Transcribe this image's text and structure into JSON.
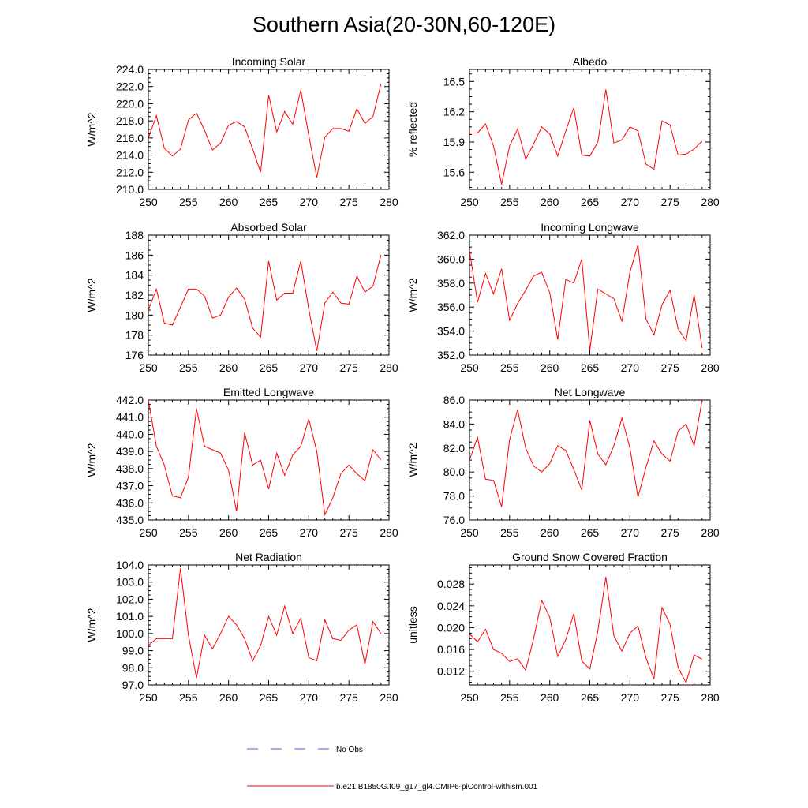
{
  "title": "Southern Asia(20-30N,60-120E)",
  "legend": {
    "no_obs_label": "No Obs",
    "model_label": "b.e21.B1850G.f09_g17_gl4.CMIP6-piControl-withism.001",
    "no_obs_color": "#4a5fcf",
    "model_color": "#ff0000"
  },
  "colors": {
    "line": "#ff0000",
    "axis": "#000000"
  },
  "chart_data": [
    {
      "type": "line",
      "title": "Incoming Solar",
      "ylabel": "W/m^2",
      "xlim": [
        250,
        280
      ],
      "ylim": [
        210,
        224
      ],
      "xticks": [
        250,
        255,
        260,
        265,
        270,
        275,
        280
      ],
      "yticks": [
        "210.0",
        "212.0",
        "214.0",
        "216.0",
        "218.0",
        "220.0",
        "222.0",
        "224.0"
      ],
      "x": [
        250,
        251,
        252,
        253,
        254,
        255,
        256,
        257,
        258,
        259,
        260,
        261,
        262,
        263,
        264,
        265,
        266,
        267,
        268,
        269,
        270,
        271,
        272,
        273,
        274,
        275,
        276,
        277,
        278,
        279
      ],
      "series": [
        {
          "values": [
            216.0,
            218.6,
            214.8,
            213.9,
            214.7,
            218.1,
            218.9,
            216.9,
            214.6,
            215.4,
            217.5,
            217.9,
            217.3,
            214.7,
            212.0,
            221.0,
            216.7,
            219.1,
            217.6,
            221.6,
            216.3,
            211.4,
            216.1,
            217.1,
            217.1,
            216.8,
            219.4,
            217.7,
            218.5,
            222.3
          ]
        }
      ]
    },
    {
      "type": "line",
      "title": "Albedo",
      "ylabel": "% reflected",
      "xlim": [
        250,
        280
      ],
      "ylim": [
        15.43,
        16.62
      ],
      "xticks": [
        250,
        255,
        260,
        265,
        270,
        275,
        280
      ],
      "yticks": [
        "15.6",
        "15.9",
        "16.2",
        "16.5"
      ],
      "x": [
        250,
        251,
        252,
        253,
        254,
        255,
        256,
        257,
        258,
        259,
        260,
        261,
        262,
        263,
        264,
        265,
        266,
        267,
        268,
        269,
        270,
        271,
        272,
        273,
        274,
        275,
        276,
        277,
        278,
        279
      ],
      "series": [
        {
          "values": [
            15.99,
            15.99,
            16.08,
            15.86,
            15.48,
            15.86,
            16.03,
            15.73,
            15.88,
            16.05,
            15.98,
            15.76,
            16.01,
            16.24,
            15.77,
            15.76,
            15.9,
            16.42,
            15.89,
            15.92,
            16.05,
            16.01,
            15.68,
            15.63,
            16.11,
            16.07,
            15.77,
            15.78,
            15.83,
            15.91
          ]
        }
      ]
    },
    {
      "type": "line",
      "title": "Absorbed Solar",
      "ylabel": "W/m^2",
      "xlim": [
        250,
        280
      ],
      "ylim": [
        176,
        188
      ],
      "xticks": [
        250,
        255,
        260,
        265,
        270,
        275,
        280
      ],
      "yticks": [
        "176",
        "178",
        "180",
        "182",
        "184",
        "186",
        "188"
      ],
      "x": [
        250,
        251,
        252,
        253,
        254,
        255,
        256,
        257,
        258,
        259,
        260,
        261,
        262,
        263,
        264,
        265,
        266,
        267,
        268,
        269,
        270,
        271,
        272,
        273,
        274,
        275,
        276,
        277,
        278,
        279
      ],
      "series": [
        {
          "values": [
            180.5,
            182.6,
            179.2,
            179.0,
            180.8,
            182.6,
            182.6,
            181.9,
            179.7,
            180.0,
            181.8,
            182.7,
            181.6,
            178.7,
            177.8,
            185.4,
            181.5,
            182.2,
            182.2,
            185.4,
            180.6,
            176.4,
            181.2,
            182.3,
            181.2,
            181.1,
            183.9,
            182.3,
            182.9,
            186.0
          ]
        }
      ]
    },
    {
      "type": "line",
      "title": "Incoming Longwave",
      "ylabel": "W/m^2",
      "xlim": [
        250,
        280
      ],
      "ylim": [
        352,
        362
      ],
      "xticks": [
        250,
        255,
        260,
        265,
        270,
        275,
        280
      ],
      "yticks": [
        "352.0",
        "354.0",
        "356.0",
        "358.0",
        "360.0",
        "362.0"
      ],
      "x": [
        250,
        251,
        252,
        253,
        254,
        255,
        256,
        257,
        258,
        259,
        260,
        261,
        262,
        263,
        264,
        265,
        266,
        267,
        268,
        269,
        270,
        271,
        272,
        273,
        274,
        275,
        276,
        277,
        278,
        279
      ],
      "series": [
        {
          "values": [
            360.7,
            356.4,
            358.8,
            357.1,
            359.2,
            354.9,
            356.3,
            357.4,
            358.6,
            358.9,
            357.2,
            353.3,
            358.3,
            358.0,
            360.0,
            352.4,
            357.5,
            357.1,
            356.7,
            354.8,
            358.9,
            361.2,
            355.0,
            353.7,
            356.2,
            357.4,
            354.2,
            353.2,
            357.0,
            352.6
          ]
        }
      ]
    },
    {
      "type": "line",
      "title": "Emitted Longwave",
      "ylabel": "W/m^2",
      "xlim": [
        250,
        280
      ],
      "ylim": [
        435,
        442
      ],
      "xticks": [
        250,
        255,
        260,
        265,
        270,
        275,
        280
      ],
      "yticks": [
        "435.0",
        "436.0",
        "437.0",
        "438.0",
        "439.0",
        "440.0",
        "441.0",
        "442.0"
      ],
      "x": [
        250,
        251,
        252,
        253,
        254,
        255,
        256,
        257,
        258,
        259,
        260,
        261,
        262,
        263,
        264,
        265,
        266,
        267,
        268,
        269,
        270,
        271,
        272,
        273,
        274,
        275,
        276,
        277,
        278,
        279
      ],
      "series": [
        {
          "values": [
            442.0,
            439.3,
            438.2,
            436.4,
            436.3,
            437.5,
            441.5,
            439.3,
            439.1,
            438.9,
            437.9,
            435.5,
            440.1,
            438.2,
            438.5,
            436.8,
            438.9,
            437.6,
            438.8,
            439.3,
            440.9,
            439.0,
            435.3,
            436.3,
            437.7,
            438.2,
            437.7,
            437.3,
            439.1,
            438.5
          ]
        }
      ]
    },
    {
      "type": "line",
      "title": "Net Longwave",
      "ylabel": "W/m^2",
      "xlim": [
        250,
        280
      ],
      "ylim": [
        76,
        86
      ],
      "xticks": [
        250,
        255,
        260,
        265,
        270,
        275,
        280
      ],
      "yticks": [
        "76.0",
        "78.0",
        "80.0",
        "82.0",
        "84.0",
        "86.0"
      ],
      "x": [
        250,
        251,
        252,
        253,
        254,
        255,
        256,
        257,
        258,
        259,
        260,
        261,
        262,
        263,
        264,
        265,
        266,
        267,
        268,
        269,
        270,
        271,
        272,
        273,
        274,
        275,
        276,
        277,
        278,
        279
      ],
      "series": [
        {
          "values": [
            81.0,
            82.9,
            79.4,
            79.3,
            77.1,
            82.7,
            85.2,
            82.0,
            80.5,
            80.0,
            80.7,
            82.2,
            81.8,
            80.2,
            78.5,
            84.3,
            81.5,
            80.6,
            82.2,
            84.5,
            82.0,
            77.9,
            80.4,
            82.6,
            81.5,
            80.9,
            83.4,
            84.0,
            82.2,
            86.0
          ]
        }
      ]
    },
    {
      "type": "line",
      "title": "Net Radiation",
      "ylabel": "W/m^2",
      "xlim": [
        250,
        280
      ],
      "ylim": [
        97,
        104
      ],
      "xticks": [
        250,
        255,
        260,
        265,
        270,
        275,
        280
      ],
      "yticks": [
        "97.0",
        "98.0",
        "99.0",
        "100.0",
        "101.0",
        "102.0",
        "103.0",
        "104.0"
      ],
      "x": [
        250,
        251,
        252,
        253,
        254,
        255,
        256,
        257,
        258,
        259,
        260,
        261,
        262,
        263,
        264,
        265,
        266,
        267,
        268,
        269,
        270,
        271,
        272,
        273,
        274,
        275,
        276,
        277,
        278,
        279
      ],
      "series": [
        {
          "values": [
            99.3,
            99.7,
            99.7,
            99.7,
            103.8,
            99.9,
            97.4,
            99.9,
            99.1,
            100.0,
            101.0,
            100.5,
            99.7,
            98.4,
            99.3,
            101.0,
            99.9,
            101.6,
            100.0,
            100.9,
            98.6,
            98.4,
            100.8,
            99.7,
            99.6,
            100.2,
            100.5,
            98.2,
            100.7,
            100.0
          ]
        }
      ]
    },
    {
      "type": "line",
      "title": "Ground Snow Covered Fraction",
      "ylabel": "unitless",
      "xlim": [
        250,
        280
      ],
      "ylim": [
        0.0095,
        0.0315
      ],
      "xticks": [
        250,
        255,
        260,
        265,
        270,
        275,
        280
      ],
      "yticks": [
        "0.012",
        "0.016",
        "0.020",
        "0.024",
        "0.028"
      ],
      "x": [
        250,
        251,
        252,
        253,
        254,
        255,
        256,
        257,
        258,
        259,
        260,
        261,
        262,
        263,
        264,
        265,
        266,
        267,
        268,
        269,
        270,
        271,
        272,
        273,
        274,
        275,
        276,
        277,
        278,
        279
      ],
      "series": [
        {
          "values": [
            0.0189,
            0.0174,
            0.0197,
            0.016,
            0.0153,
            0.0138,
            0.0143,
            0.0122,
            0.018,
            0.025,
            0.0219,
            0.0147,
            0.0178,
            0.0226,
            0.0139,
            0.0124,
            0.0194,
            0.0293,
            0.0185,
            0.0157,
            0.019,
            0.0203,
            0.0144,
            0.0106,
            0.0237,
            0.0206,
            0.0127,
            0.0099,
            0.015,
            0.0142
          ]
        }
      ]
    }
  ]
}
